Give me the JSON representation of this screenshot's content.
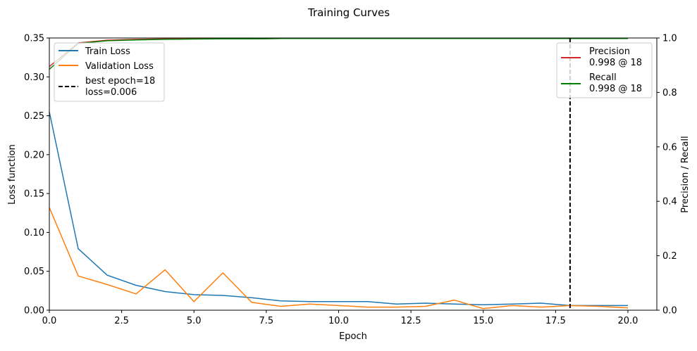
{
  "chart_data": {
    "type": "line",
    "title": "Training Curves",
    "xlabel": "Epoch",
    "ylabel_left": "Loss function",
    "ylabel_right": "Precision / Recall",
    "xlim": [
      0,
      21
    ],
    "ylim_left": [
      0,
      0.35
    ],
    "ylim_right": [
      0,
      1.0
    ],
    "x_ticks": [
      0,
      2.5,
      5,
      7.5,
      10,
      12.5,
      15,
      17.5,
      20
    ],
    "x_tick_labels": [
      "0.0",
      "2.5",
      "5.0",
      "7.5",
      "10.0",
      "12.5",
      "15.0",
      "17.5",
      "20.0"
    ],
    "y_left_ticks": [
      0,
      0.05,
      0.1,
      0.15,
      0.2,
      0.25,
      0.3,
      0.35
    ],
    "y_left_tick_labels": [
      "0.00",
      "0.05",
      "0.10",
      "0.15",
      "0.20",
      "0.25",
      "0.30",
      "0.35"
    ],
    "y_right_ticks": [
      0,
      0.2,
      0.4,
      0.6,
      0.8,
      1.0
    ],
    "y_right_tick_labels": [
      "0.0",
      "0.2",
      "0.4",
      "0.6",
      "0.8",
      "1.0"
    ],
    "grid": false,
    "x": [
      0,
      1,
      2,
      3,
      4,
      5,
      6,
      7,
      8,
      9,
      10,
      11,
      12,
      13,
      14,
      15,
      16,
      17,
      18,
      19,
      20
    ],
    "series_left": [
      {
        "name": "Train Loss",
        "color": "#1f77b4",
        "values": [
          0.255,
          0.079,
          0.045,
          0.032,
          0.024,
          0.02,
          0.019,
          0.016,
          0.012,
          0.011,
          0.011,
          0.011,
          0.008,
          0.009,
          0.008,
          0.007,
          0.008,
          0.009,
          0.006,
          0.006,
          0.006
        ]
      },
      {
        "name": "Validation Loss",
        "color": "#ff7f0e",
        "values": [
          0.132,
          0.044,
          0.033,
          0.021,
          0.052,
          0.011,
          0.048,
          0.01,
          0.005,
          0.008,
          0.006,
          0.004,
          0.004,
          0.005,
          0.013,
          0.002,
          0.006,
          0.004,
          0.006,
          0.005,
          0.003
        ]
      }
    ],
    "series_right": [
      {
        "name": "Precision",
        "legend_sub": "0.998 @ 18",
        "color": "#d62728",
        "values": [
          0.895,
          0.982,
          0.992,
          0.995,
          0.997,
          0.997,
          0.997,
          0.997,
          0.998,
          0.998,
          0.998,
          0.998,
          0.998,
          0.998,
          0.998,
          0.998,
          0.998,
          0.998,
          0.998,
          0.998,
          0.998
        ]
      },
      {
        "name": "Recall",
        "legend_sub": "0.998 @ 18",
        "color": "#008000",
        "values": [
          0.885,
          0.98,
          0.99,
          0.993,
          0.995,
          0.996,
          0.997,
          0.997,
          0.998,
          0.998,
          0.998,
          0.998,
          0.998,
          0.998,
          0.998,
          0.998,
          0.998,
          0.998,
          0.998,
          0.998,
          0.998
        ]
      }
    ],
    "best_epoch": {
      "x": 18,
      "label_line1": "best epoch=18",
      "label_line2": "loss=0.006",
      "color": "#000000",
      "style": "dashed"
    },
    "legend_left_position": "upper-left",
    "legend_right_position": "upper-right"
  }
}
